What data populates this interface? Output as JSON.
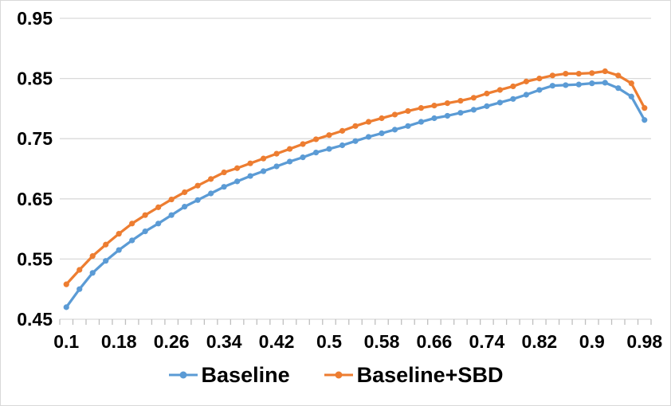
{
  "chart_data": {
    "type": "line",
    "title": "",
    "xlabel": "",
    "ylabel": "",
    "x": [
      0.1,
      0.12,
      0.14,
      0.16,
      0.18,
      0.2,
      0.22,
      0.24,
      0.26,
      0.28,
      0.3,
      0.32,
      0.34,
      0.36,
      0.38,
      0.4,
      0.42,
      0.44,
      0.46,
      0.48,
      0.5,
      0.52,
      0.54,
      0.56,
      0.58,
      0.6,
      0.62,
      0.64,
      0.66,
      0.68,
      0.7,
      0.72,
      0.74,
      0.76,
      0.78,
      0.8,
      0.82,
      0.84,
      0.86,
      0.88,
      0.9,
      0.92,
      0.94,
      0.96,
      0.98
    ],
    "series": [
      {
        "name": "Baseline",
        "color": "#5B9BD5",
        "values": [
          0.47,
          0.5,
          0.527,
          0.547,
          0.565,
          0.581,
          0.596,
          0.609,
          0.623,
          0.637,
          0.648,
          0.659,
          0.67,
          0.679,
          0.688,
          0.696,
          0.704,
          0.712,
          0.719,
          0.727,
          0.733,
          0.739,
          0.746,
          0.753,
          0.759,
          0.765,
          0.771,
          0.778,
          0.784,
          0.788,
          0.793,
          0.798,
          0.804,
          0.81,
          0.816,
          0.823,
          0.831,
          0.838,
          0.839,
          0.84,
          0.842,
          0.843,
          0.834,
          0.82,
          0.781
        ]
      },
      {
        "name": "Baseline+SBD",
        "color": "#ED7D31",
        "values": [
          0.508,
          0.532,
          0.555,
          0.574,
          0.592,
          0.609,
          0.623,
          0.636,
          0.649,
          0.661,
          0.672,
          0.683,
          0.694,
          0.701,
          0.709,
          0.717,
          0.725,
          0.733,
          0.741,
          0.749,
          0.756,
          0.763,
          0.771,
          0.778,
          0.784,
          0.79,
          0.796,
          0.801,
          0.805,
          0.809,
          0.813,
          0.818,
          0.825,
          0.831,
          0.837,
          0.845,
          0.85,
          0.855,
          0.858,
          0.858,
          0.859,
          0.862,
          0.855,
          0.842,
          0.801
        ]
      }
    ],
    "x_tick_labels": [
      "0.1",
      "0.18",
      "0.26",
      "0.34",
      "0.42",
      "0.5",
      "0.58",
      "0.66",
      "0.74",
      "0.82",
      "0.9",
      "0.98"
    ],
    "x_label_every": 4,
    "y_ticks": [
      0.45,
      0.55,
      0.65,
      0.75,
      0.85,
      0.95
    ],
    "y_tick_labels": [
      "0.45",
      "0.55",
      "0.65",
      "0.75",
      "0.85",
      "0.95"
    ],
    "ylim": [
      0.45,
      0.95
    ],
    "grid": true,
    "legend_position": "bottom",
    "colors": {
      "gridline": "#D9D9D9",
      "tick": "#BFBFBF",
      "axis_text": "#000000",
      "background": "#FFFFFF",
      "border": "#D9D9D9"
    }
  }
}
